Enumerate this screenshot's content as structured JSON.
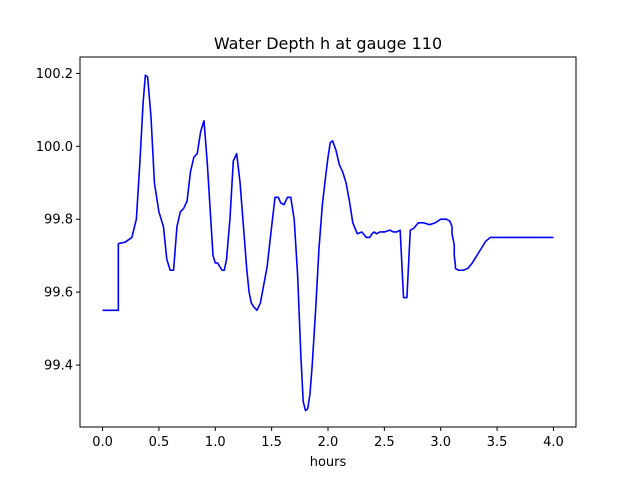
{
  "chart_data": {
    "type": "line",
    "title": "Water Depth h at gauge 110",
    "xlabel": "hours",
    "ylabel": "",
    "xlim": [
      -0.2,
      4.2
    ],
    "ylim": [
      99.23,
      100.245
    ],
    "x_ticks": [
      {
        "value": 0.0,
        "label": "0.0"
      },
      {
        "value": 0.5,
        "label": "0.5"
      },
      {
        "value": 1.0,
        "label": "1.0"
      },
      {
        "value": 1.5,
        "label": "1.5"
      },
      {
        "value": 2.0,
        "label": "2.0"
      },
      {
        "value": 2.5,
        "label": "2.5"
      },
      {
        "value": 3.0,
        "label": "3.0"
      },
      {
        "value": 3.5,
        "label": "3.5"
      },
      {
        "value": 4.0,
        "label": "4.0"
      }
    ],
    "y_ticks": [
      {
        "value": 99.4,
        "label": "99.4"
      },
      {
        "value": 99.6,
        "label": "99.6"
      },
      {
        "value": 99.8,
        "label": "99.8"
      },
      {
        "value": 100.0,
        "label": "100.0"
      },
      {
        "value": 100.2,
        "label": "100.2"
      }
    ],
    "grid": false,
    "series": [
      {
        "color": "#0000ff",
        "x": [
          0.0,
          0.14,
          0.14,
          0.2,
          0.26,
          0.3,
          0.33,
          0.36,
          0.38,
          0.4,
          0.43,
          0.46,
          0.5,
          0.54,
          0.57,
          0.6,
          0.63,
          0.66,
          0.69,
          0.72,
          0.75,
          0.78,
          0.81,
          0.84,
          0.87,
          0.9,
          0.93,
          0.96,
          0.98,
          1.0,
          1.02,
          1.04,
          1.06,
          1.08,
          1.1,
          1.13,
          1.16,
          1.19,
          1.22,
          1.25,
          1.28,
          1.3,
          1.32,
          1.34,
          1.37,
          1.4,
          1.43,
          1.46,
          1.5,
          1.53,
          1.56,
          1.58,
          1.61,
          1.64,
          1.67,
          1.7,
          1.73,
          1.76,
          1.78,
          1.8,
          1.82,
          1.84,
          1.86,
          1.89,
          1.92,
          1.95,
          1.98,
          2.0,
          2.02,
          2.04,
          2.07,
          2.1,
          2.13,
          2.16,
          2.19,
          2.22,
          2.26,
          2.3,
          2.34,
          2.37,
          2.39,
          2.41,
          2.43,
          2.46,
          2.5,
          2.55,
          2.58,
          2.61,
          2.64,
          2.67,
          2.7,
          2.73,
          2.76,
          2.8,
          2.85,
          2.9,
          2.95,
          3.0,
          3.05,
          3.08,
          3.1,
          3.1,
          3.12,
          3.12,
          3.13,
          3.13,
          3.16,
          3.2,
          3.24,
          3.28,
          3.32,
          3.36,
          3.4,
          3.44,
          3.48,
          3.52,
          3.56,
          3.6,
          3.64,
          3.68,
          3.72,
          3.76,
          3.8,
          3.84,
          3.88,
          3.92,
          3.96,
          4.0
        ],
        "y": [
          99.55,
          99.55,
          99.733,
          99.737,
          99.75,
          99.8,
          99.95,
          100.12,
          100.195,
          100.19,
          100.08,
          99.9,
          99.82,
          99.78,
          99.69,
          99.66,
          99.66,
          99.78,
          99.82,
          99.83,
          99.85,
          99.93,
          99.97,
          99.98,
          100.04,
          100.07,
          99.95,
          99.8,
          99.7,
          99.68,
          99.68,
          99.67,
          99.66,
          99.66,
          99.69,
          99.8,
          99.96,
          99.98,
          99.9,
          99.78,
          99.66,
          99.6,
          99.57,
          99.56,
          99.55,
          99.57,
          99.62,
          99.67,
          99.78,
          99.86,
          99.86,
          99.845,
          99.84,
          99.86,
          99.86,
          99.8,
          99.65,
          99.42,
          99.3,
          99.275,
          99.28,
          99.32,
          99.4,
          99.55,
          99.72,
          99.84,
          99.92,
          99.97,
          100.01,
          100.015,
          99.99,
          99.95,
          99.93,
          99.9,
          99.85,
          99.79,
          99.76,
          99.765,
          99.75,
          99.75,
          99.76,
          99.765,
          99.76,
          99.765,
          99.765,
          99.77,
          99.765,
          99.765,
          99.77,
          99.585,
          99.585,
          99.77,
          99.775,
          99.79,
          99.79,
          99.785,
          99.79,
          99.8,
          99.8,
          99.795,
          99.78,
          99.76,
          99.73,
          99.7,
          99.675,
          99.665,
          99.66,
          99.66,
          99.665,
          99.68,
          99.7,
          99.72,
          99.74,
          99.75,
          99.75,
          99.75,
          99.75,
          99.75,
          99.75,
          99.75,
          99.75,
          99.75,
          99.75,
          99.75,
          99.75,
          99.75,
          99.75,
          99.75
        ]
      }
    ]
  }
}
